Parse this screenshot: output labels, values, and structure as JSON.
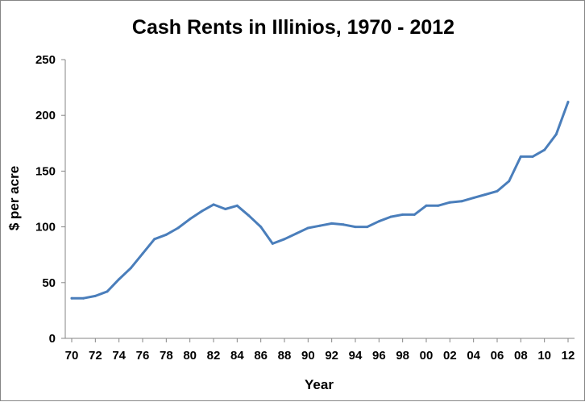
{
  "chart_data": {
    "type": "line",
    "title": "Cash Rents in Illinios, 1970 - 2012",
    "xlabel": "Year",
    "ylabel": "$ per acre",
    "ylim": [
      0,
      250
    ],
    "yticks": [
      "0",
      "50",
      "100",
      "150",
      "200",
      "250"
    ],
    "xticks": [
      "70",
      "72",
      "74",
      "76",
      "78",
      "80",
      "82",
      "84",
      "86",
      "88",
      "90",
      "92",
      "94",
      "96",
      "98",
      "00",
      "02",
      "04",
      "06",
      "08",
      "10",
      "12"
    ],
    "grid": false,
    "legend": "none",
    "line_color": "#4a7ebb",
    "series": [
      {
        "x": [
          1970,
          1971,
          1972,
          1973,
          1974,
          1975,
          1976,
          1977,
          1978,
          1979,
          1980,
          1981,
          1982,
          1983,
          1984,
          1985,
          1986,
          1987,
          1988,
          1989,
          1990,
          1991,
          1992,
          1993,
          1994,
          1995,
          1996,
          1997,
          1998,
          1999,
          2000,
          2001,
          2002,
          2003,
          2004,
          2005,
          2006,
          2007,
          2008,
          2009,
          2010,
          2011,
          2012
        ],
        "values": [
          36,
          36,
          38,
          42,
          53,
          63,
          76,
          89,
          93,
          99,
          107,
          114,
          120,
          116,
          119,
          110,
          100,
          85,
          89,
          94,
          99,
          101,
          103,
          102,
          100,
          100,
          105,
          109,
          111,
          111,
          119,
          119,
          122,
          123,
          126,
          129,
          132,
          141,
          163,
          163,
          169,
          183,
          212
        ]
      }
    ]
  }
}
